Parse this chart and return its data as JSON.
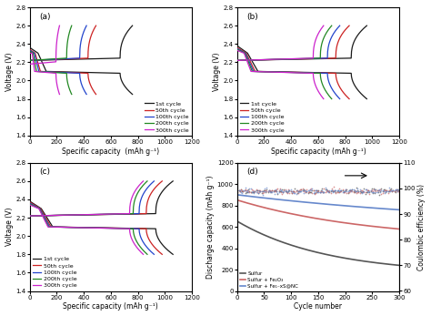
{
  "fig_width": 4.74,
  "fig_height": 3.47,
  "dpi": 100,
  "background": "#ffffff",
  "cycle_colors": {
    "1st cycle": "#1a1a1a",
    "50th cycle": "#cc2222",
    "100th cycle": "#2244cc",
    "200th cycle": "#228822",
    "300th cycle": "#cc22cc"
  },
  "cycle_labels": [
    "1st cycle",
    "50th cycle",
    "100th cycle",
    "200th cycle",
    "300th cycle"
  ],
  "panels_abc": {
    "xlim": [
      0,
      1200
    ],
    "ylim": [
      1.4,
      2.8
    ],
    "xticks": [
      0,
      200,
      400,
      600,
      800,
      1000,
      1200
    ],
    "yticks": [
      1.4,
      1.6,
      1.8,
      2.0,
      2.2,
      2.4,
      2.6,
      2.8
    ]
  },
  "panel_a": {
    "label": "(a)",
    "xlabel": "Specific capacity  (mAh g⁻¹)",
    "ylabel": "Voltage (V)",
    "cycles": {
      "1st cycle": {
        "cap": 760,
        "v_discharge_end": 1.85,
        "v_charge_flat": 2.22,
        "v_start_disc": 2.36
      },
      "50th cycle": {
        "cap": 490,
        "v_discharge_end": 1.85,
        "v_charge_flat": 2.22,
        "v_start_disc": 2.34
      },
      "100th cycle": {
        "cap": 420,
        "v_discharge_end": 1.85,
        "v_charge_flat": 2.22,
        "v_start_disc": 2.33
      },
      "200th cycle": {
        "cap": 310,
        "v_discharge_end": 1.85,
        "v_charge_flat": 2.22,
        "v_start_disc": 2.32
      },
      "300th cycle": {
        "cap": 220,
        "v_discharge_end": 1.85,
        "v_charge_flat": 2.18,
        "v_start_disc": 2.3
      }
    }
  },
  "panel_b": {
    "label": "(b)",
    "xlabel": "Specific capacity (mAh g⁻¹)",
    "ylabel": "Voltage (V)",
    "cycles": {
      "1st cycle": {
        "cap": 960,
        "v_discharge_end": 1.8,
        "v_charge_flat": 2.22,
        "v_start_disc": 2.38
      },
      "50th cycle": {
        "cap": 830,
        "v_discharge_end": 1.8,
        "v_charge_flat": 2.22,
        "v_start_disc": 2.36
      },
      "100th cycle": {
        "cap": 760,
        "v_discharge_end": 1.8,
        "v_charge_flat": 2.22,
        "v_start_disc": 2.35
      },
      "200th cycle": {
        "cap": 700,
        "v_discharge_end": 1.8,
        "v_charge_flat": 2.22,
        "v_start_disc": 2.34
      },
      "300th cycle": {
        "cap": 640,
        "v_discharge_end": 1.8,
        "v_charge_flat": 2.22,
        "v_start_disc": 2.33
      }
    }
  },
  "panel_c": {
    "label": "(c)",
    "xlabel": "Specific capacity (mAh g⁻¹)",
    "ylabel": "Voltage (V)",
    "cycles": {
      "1st cycle": {
        "cap": 1060,
        "v_discharge_end": 1.8,
        "v_charge_flat": 2.22,
        "v_start_disc": 2.38
      },
      "50th cycle": {
        "cap": 980,
        "v_discharge_end": 1.8,
        "v_charge_flat": 2.22,
        "v_start_disc": 2.37
      },
      "100th cycle": {
        "cap": 920,
        "v_discharge_end": 1.8,
        "v_charge_flat": 2.22,
        "v_start_disc": 2.36
      },
      "200th cycle": {
        "cap": 870,
        "v_discharge_end": 1.8,
        "v_charge_flat": 2.22,
        "v_start_disc": 2.35
      },
      "300th cycle": {
        "cap": 840,
        "v_discharge_end": 1.8,
        "v_charge_flat": 2.22,
        "v_start_disc": 2.34
      }
    }
  },
  "panel_d": {
    "label": "(d)",
    "xlim": [
      0,
      300
    ],
    "ylim_left": [
      0,
      1200
    ],
    "ylim_right": [
      60,
      110
    ],
    "yticks_left": [
      0,
      200,
      400,
      600,
      800,
      1000,
      1200
    ],
    "yticks_right": [
      60,
      70,
      80,
      90,
      100,
      110
    ],
    "xlabel": "Cycle number",
    "ylabel_left": "Discharge capacity (mAh g⁻¹)",
    "ylabel_right": "Coulombic efficiency (%)",
    "series": {
      "Sulfur": {
        "color": "#555555",
        "cap_start": 650,
        "cap_end": 240,
        "decay": 1.8
      },
      "Sulfur + Fe₂O₃": {
        "color": "#cc6666",
        "cap_start": 850,
        "cap_end": 580,
        "decay": 1.2
      },
      "Sulfur + Fe₁₋xS@NC": {
        "color": "#6688cc",
        "cap_start": 900,
        "cap_end": 760,
        "decay": 0.6
      }
    }
  }
}
